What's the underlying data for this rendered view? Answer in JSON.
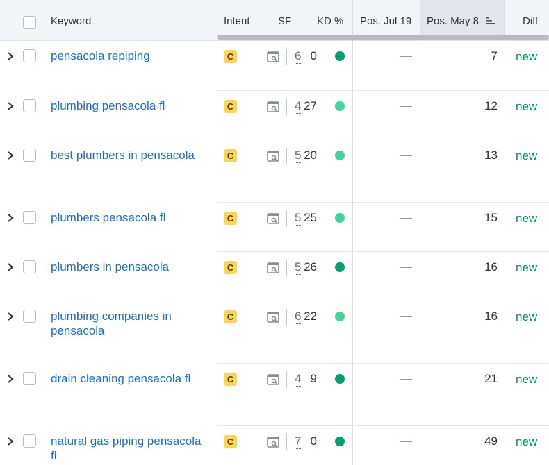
{
  "header": {
    "keyword": "Keyword",
    "intent": "Intent",
    "sf": "SF",
    "kd": "KD %",
    "pos_jul": "Pos. Jul 19",
    "pos_may": "Pos. May 8",
    "diff": "Diff"
  },
  "colors": {
    "link": "#1f6fc7",
    "intent_badge": "#fcd45c",
    "kd_dark_green": "#00a070",
    "kd_light_green": "#3fd69a",
    "diff_green": "#0b8a6b"
  },
  "rows": [
    {
      "keyword": "pensacola repiping",
      "intent": "C",
      "sf": "6",
      "kd": "0",
      "kd_level": "dark",
      "pos_jul": "—",
      "pos_may": "7",
      "diff": "new"
    },
    {
      "keyword": "plumbing pensacola fl",
      "intent": "C",
      "sf": "4",
      "kd": "27",
      "kd_level": "light",
      "pos_jul": "—",
      "pos_may": "12",
      "diff": "new"
    },
    {
      "keyword": "best plumbers in pensacola",
      "intent": "C",
      "sf": "5",
      "kd": "20",
      "kd_level": "light",
      "pos_jul": "—",
      "pos_may": "13",
      "diff": "new"
    },
    {
      "keyword": "plumbers pensacola fl",
      "intent": "C",
      "sf": "5",
      "kd": "25",
      "kd_level": "light",
      "pos_jul": "—",
      "pos_may": "15",
      "diff": "new"
    },
    {
      "keyword": "plumbers in pensacola",
      "intent": "C",
      "sf": "5",
      "kd": "26",
      "kd_level": "dark",
      "pos_jul": "—",
      "pos_may": "16",
      "diff": "new"
    },
    {
      "keyword": "plumbing companies in pensacola",
      "intent": "C",
      "sf": "6",
      "kd": "22",
      "kd_level": "light",
      "pos_jul": "—",
      "pos_may": "16",
      "diff": "new"
    },
    {
      "keyword": "drain cleaning pensacola fl",
      "intent": "C",
      "sf": "4",
      "kd": "9",
      "kd_level": "dark",
      "pos_jul": "—",
      "pos_may": "21",
      "diff": "new"
    },
    {
      "keyword": "natural gas piping pensacola fl",
      "intent": "C",
      "sf": "7",
      "kd": "0",
      "kd_level": "dark",
      "pos_jul": "—",
      "pos_may": "49",
      "diff": "new"
    }
  ]
}
